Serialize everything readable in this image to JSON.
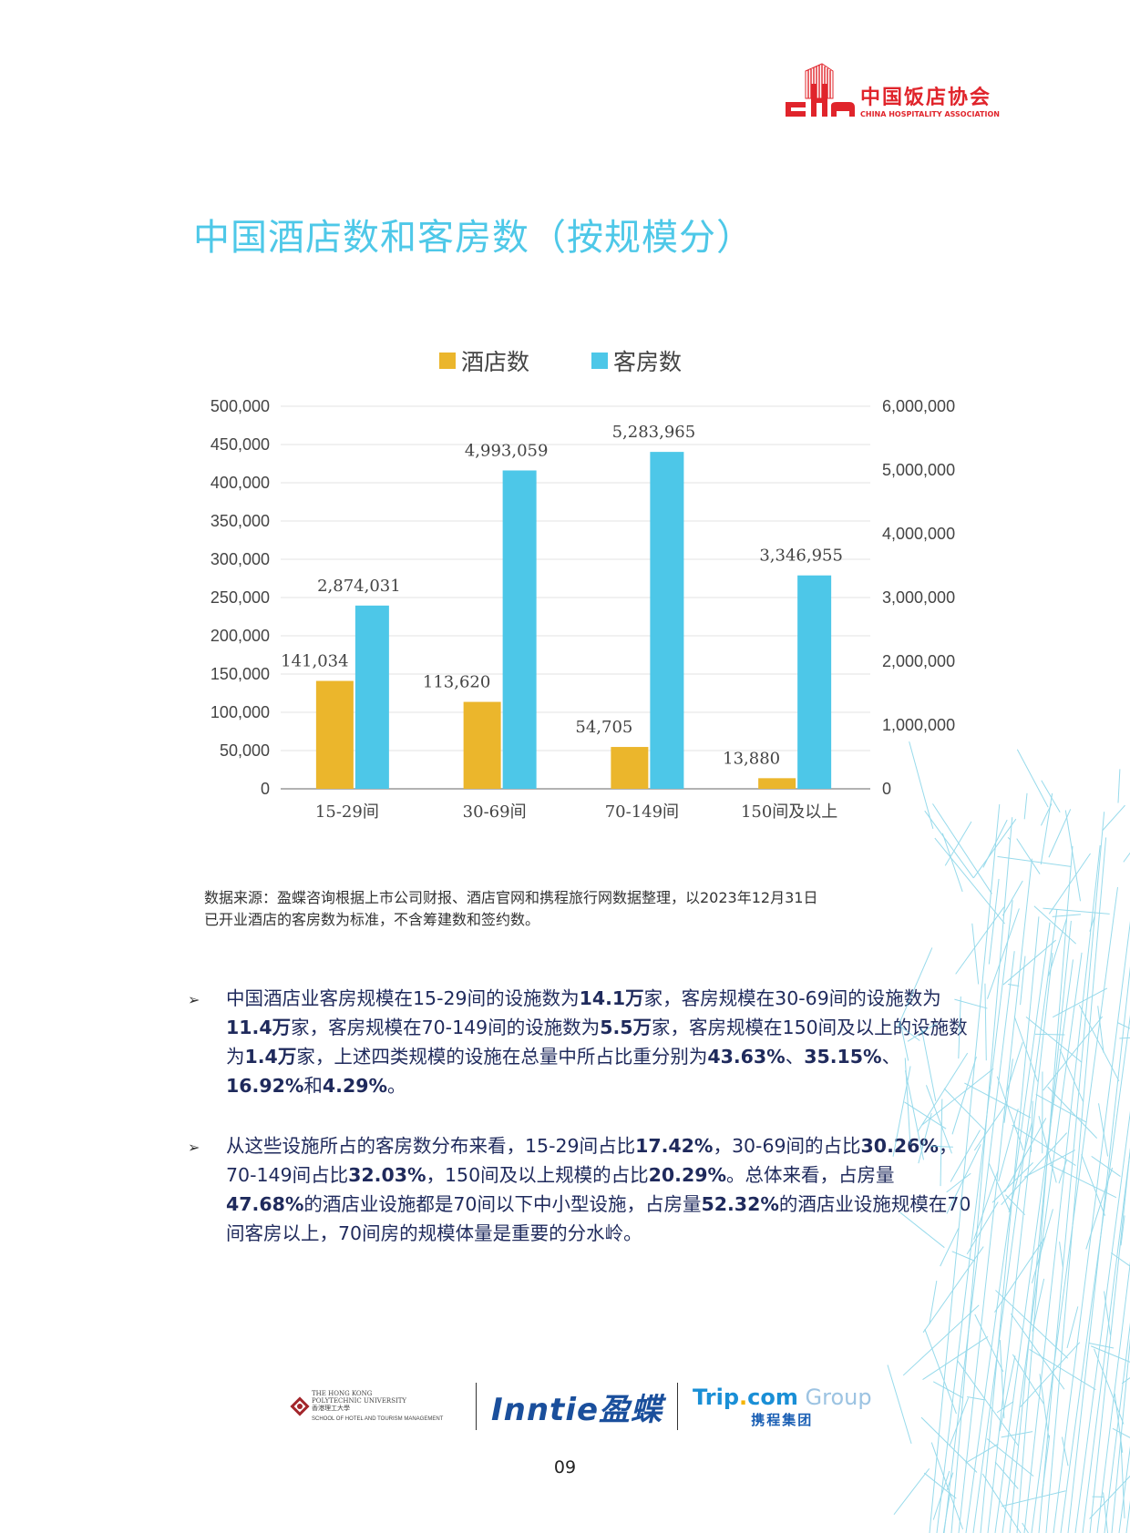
{
  "header": {
    "logo_cn": "中国饭店协会",
    "logo_en": "CHINA HOSPITALITY ASSOCIATION"
  },
  "page_title": "中国酒店数和客房数（按规模分）",
  "chart_data": {
    "type": "bar",
    "title": "",
    "categories": [
      "15-29间",
      "30-69间",
      "70-149间",
      "150间及以上"
    ],
    "series": [
      {
        "name": "酒店数",
        "axis": "left",
        "color": "#ebb62c",
        "values": [
          141034,
          113620,
          54705,
          13880
        ],
        "labels": [
          "141,034",
          "113,620",
          "54,705",
          "13,880"
        ]
      },
      {
        "name": "客房数",
        "axis": "right",
        "color": "#4dc7e8",
        "values": [
          2874031,
          4993059,
          5283965,
          3346955
        ],
        "labels": [
          "2,874,031",
          "4,993,059",
          "5,283,965",
          "3,346,955"
        ]
      }
    ],
    "left_axis": {
      "ylim": [
        0,
        500000
      ],
      "ticks": [
        "0",
        "50,000",
        "100,000",
        "150,000",
        "200,000",
        "250,000",
        "300,000",
        "350,000",
        "400,000",
        "450,000",
        "500,000"
      ]
    },
    "right_axis": {
      "ylim": [
        0,
        6000000
      ],
      "ticks": [
        "0",
        "1,000,000",
        "2,000,000",
        "3,000,000",
        "4,000,000",
        "5,000,000",
        "6,000,000"
      ]
    },
    "xlabel": "",
    "ylabel": "",
    "grid": true,
    "legend_position": "top"
  },
  "source_note": {
    "line1": "数据来源：盈蝶咨询根据上市公司财报、酒店官网和携程旅行网数据整理，以2023年12月31日",
    "line2": "已开业酒店的客房数为标准，不含筹建数和签约数。"
  },
  "bullets": [
    {
      "parts": [
        {
          "t": "中国酒店业客房规模在15-29间的设施数为",
          "b": false
        },
        {
          "t": "14.1万",
          "b": true
        },
        {
          "t": "家，客房规模在30-69间的设施数为",
          "b": false
        },
        {
          "t": "11.4万",
          "b": true
        },
        {
          "t": "家，客房规模在70-149间的设施数为",
          "b": false
        },
        {
          "t": "5.5万",
          "b": true
        },
        {
          "t": "家，客房规模在150间及以上的设施数为",
          "b": false
        },
        {
          "t": "1.4万",
          "b": true
        },
        {
          "t": "家，上述四类规模的设施在总量中所占比重分别为",
          "b": false
        },
        {
          "t": "43.63%",
          "b": true
        },
        {
          "t": "、",
          "b": false
        },
        {
          "t": "35.15%",
          "b": true
        },
        {
          "t": "、",
          "b": false
        },
        {
          "t": "16.92%",
          "b": true
        },
        {
          "t": "和",
          "b": false
        },
        {
          "t": "4.29%",
          "b": true
        },
        {
          "t": "。",
          "b": false
        }
      ]
    },
    {
      "parts": [
        {
          "t": "从这些设施所占的客房数分布来看，15-29间占比",
          "b": false
        },
        {
          "t": "17.42%",
          "b": true
        },
        {
          "t": "，30-69间的占比",
          "b": false
        },
        {
          "t": "30.26%",
          "b": true
        },
        {
          "t": "，70-149间占比",
          "b": false
        },
        {
          "t": "32.03%",
          "b": true
        },
        {
          "t": "，150间及以上规模的占比",
          "b": false
        },
        {
          "t": "20.29%",
          "b": true
        },
        {
          "t": "。总体来看，占房量",
          "b": false
        },
        {
          "t": "47.68%",
          "b": true
        },
        {
          "t": "的酒店业设施都是70间以下中小型设施，占房量",
          "b": false
        },
        {
          "t": "52.32%",
          "b": true
        },
        {
          "t": "的酒店业设施规模在70间客房以上，70间房的规模体量是重要的分水岭。",
          "b": false
        }
      ]
    }
  ],
  "footer": {
    "polyu_line1": "THE HONG KONG",
    "polyu_line2": "POLYTECHNIC UNIVERSITY",
    "polyu_line3": "香港理工大學",
    "polyu_line4": "SCHOOL OF HOTEL AND TOURISM MANAGEMENT",
    "inntie": "Inntie盈蝶",
    "trip_a": "Trip",
    "trip_dot": ".",
    "trip_b": "com",
    "trip_group": " Group",
    "trip_cn": "携程集团",
    "page_number": "09"
  }
}
